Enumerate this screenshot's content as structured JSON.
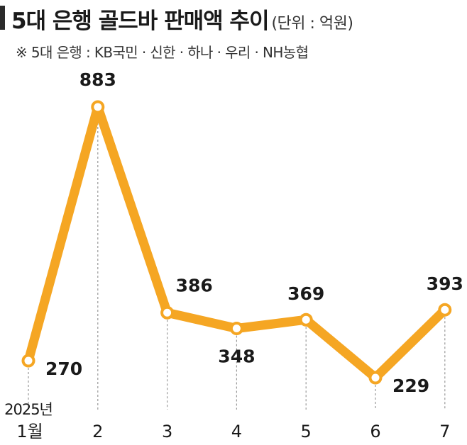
{
  "header": {
    "title": "5대 은행 골드바 판매액 추이",
    "unit": "(단위 : 억원)",
    "subtitle": "※ 5대 은행 : KB국민 · 신한 · 하나 · 우리 · NH농협"
  },
  "colors": {
    "line": "#F5A623",
    "marker_fill": "#ffffff",
    "guide": "#9a9a9a",
    "text": "#1a1a1a"
  },
  "chart_data": {
    "type": "line",
    "title": "5대 은행 골드바 판매액 추이",
    "categories": [
      "1월",
      "2",
      "3",
      "4",
      "5",
      "6",
      "7"
    ],
    "year_label": "2025년",
    "series": [
      {
        "values": [
          270,
          883,
          386,
          348,
          369,
          229,
          393
        ]
      }
    ],
    "value_labels": [
      "270",
      "883",
      "386",
      "348",
      "369",
      "229",
      "393"
    ],
    "ylim": [
      200,
      900
    ],
    "grid": false,
    "legend": "none"
  }
}
